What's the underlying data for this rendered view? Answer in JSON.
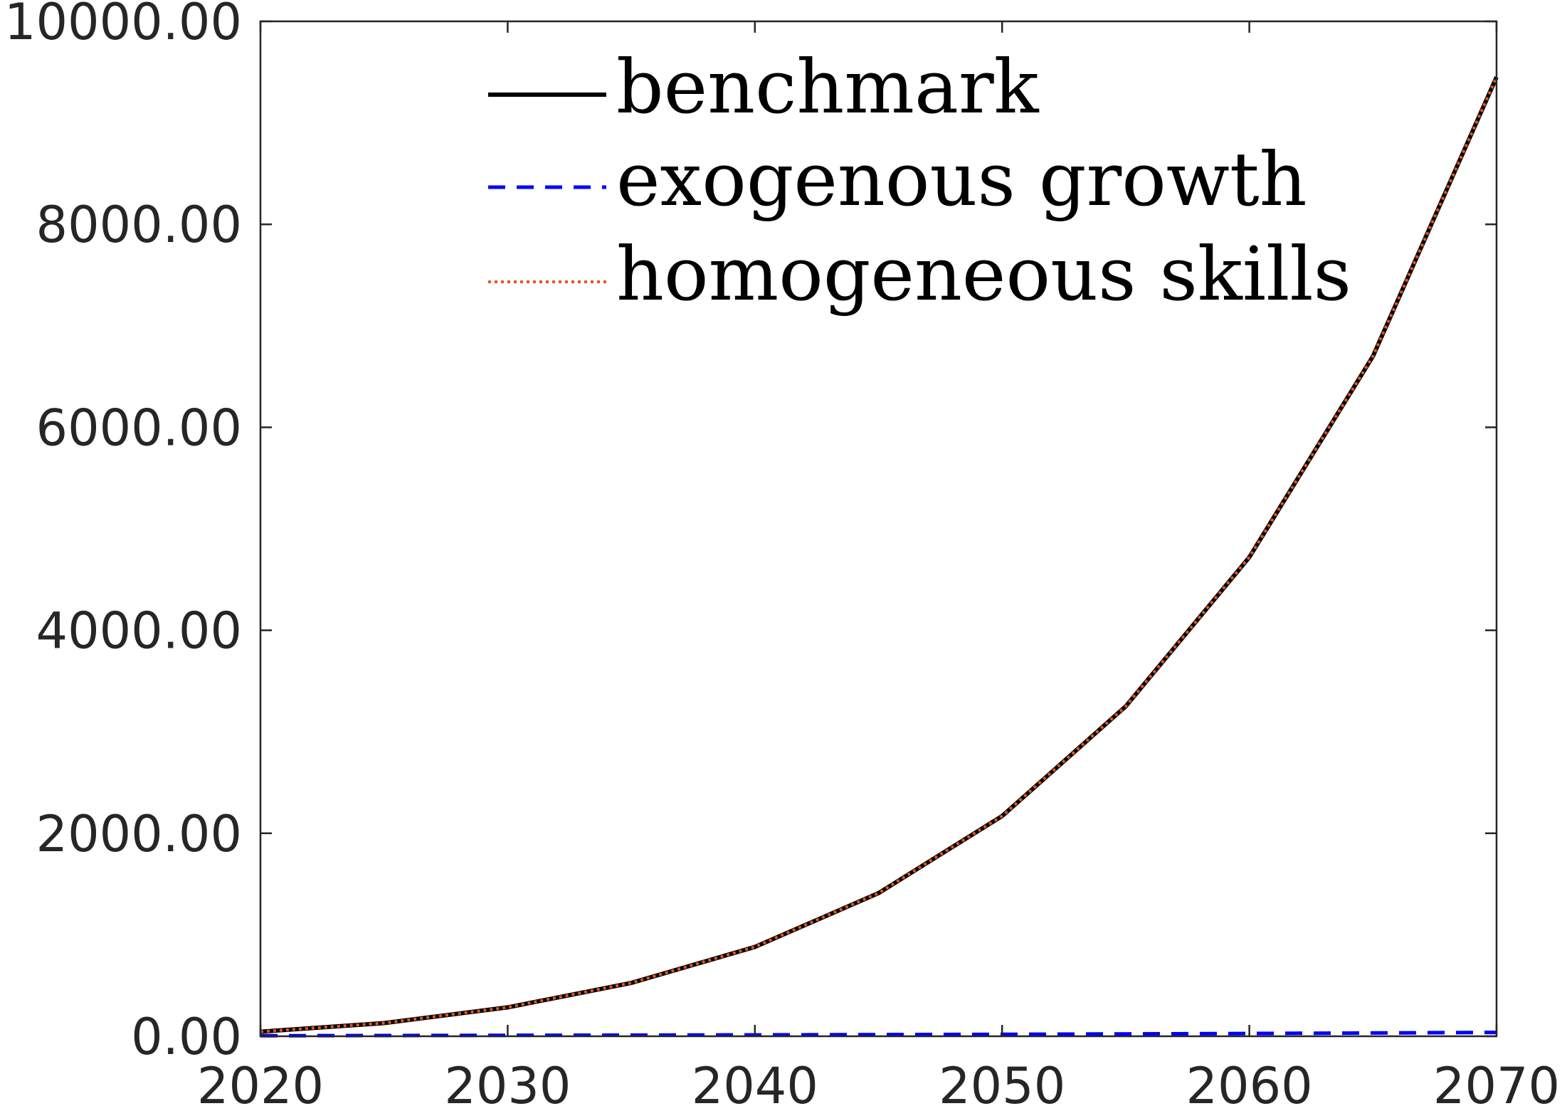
{
  "chart_data": {
    "type": "line",
    "title": "",
    "xlabel": "",
    "ylabel": "",
    "x": [
      2020,
      2025,
      2030,
      2035,
      2040,
      2045,
      2050,
      2055,
      2060,
      2065,
      2070
    ],
    "xlim": [
      2020,
      2070
    ],
    "ylim": [
      0,
      10000
    ],
    "x_ticks": [
      2020,
      2030,
      2040,
      2050,
      2060,
      2070
    ],
    "x_tick_labels": [
      "2020",
      "2030",
      "2040",
      "2050",
      "2060",
      "2070"
    ],
    "y_ticks": [
      0,
      2000,
      4000,
      6000,
      8000,
      10000
    ],
    "y_tick_labels": [
      "0.00",
      "2000.00",
      "4000.00",
      "6000.00",
      "8000.00",
      "10000.00"
    ],
    "grid": false,
    "legend_position": "top-center",
    "series": [
      {
        "name": "benchmark",
        "color": "#000000",
        "style": "solid",
        "values": [
          45,
          130,
          285,
          525,
          880,
          1410,
          2170,
          3250,
          4720,
          6700,
          9450
        ]
      },
      {
        "name": "exogenous growth",
        "color": "#0000ff",
        "style": "dashed",
        "values": [
          5,
          7,
          9,
          11,
          13,
          16,
          19,
          23,
          27,
          32,
          38
        ]
      },
      {
        "name": "homogeneous skills",
        "color": "#e8561a",
        "style": "dotted",
        "values": [
          45,
          130,
          285,
          525,
          880,
          1410,
          2170,
          3250,
          4720,
          6700,
          9450
        ]
      }
    ]
  }
}
